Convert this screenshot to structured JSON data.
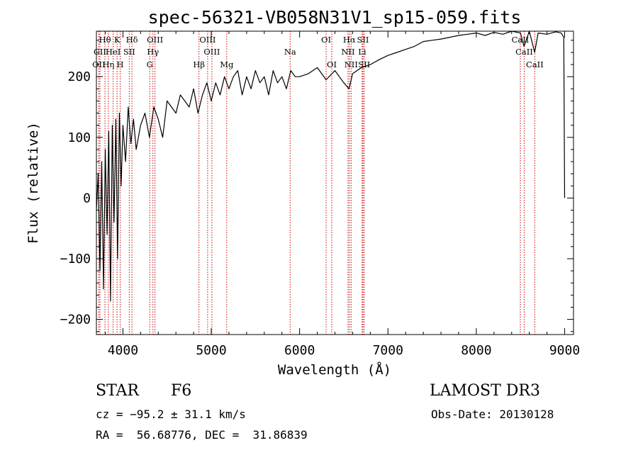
{
  "chart_data": {
    "type": "line",
    "title": "spec-56321-VB058N31V1_sp15-059.fits",
    "xlabel": "Wavelength (Å)",
    "ylabel": "Flux (relative)",
    "xlim": [
      3700,
      9100
    ],
    "ylim": [
      -225,
      275
    ],
    "xticks": [
      4000,
      5000,
      6000,
      7000,
      8000,
      9000
    ],
    "xtick_labels": [
      "4000",
      "5000",
      "6000",
      "7000",
      "8000",
      "9000"
    ],
    "yticks": [
      -200,
      -100,
      0,
      100,
      200
    ],
    "ytick_labels": [
      "−200",
      "−100",
      "0",
      "100",
      "200"
    ],
    "grid": false,
    "series": [
      {
        "name": "flux",
        "x": [
          3700,
          3720,
          3740,
          3760,
          3780,
          3800,
          3820,
          3840,
          3860,
          3880,
          3900,
          3920,
          3940,
          3960,
          3980,
          4000,
          4030,
          4060,
          4090,
          4120,
          4150,
          4200,
          4250,
          4300,
          4350,
          4400,
          4450,
          4500,
          4550,
          4600,
          4650,
          4700,
          4750,
          4800,
          4850,
          4900,
          4950,
          5000,
          5050,
          5100,
          5150,
          5200,
          5250,
          5300,
          5350,
          5400,
          5450,
          5500,
          5550,
          5600,
          5650,
          5700,
          5750,
          5800,
          5850,
          5900,
          5950,
          6000,
          6100,
          6200,
          6300,
          6400,
          6500,
          6560,
          6600,
          6700,
          6800,
          6900,
          7000,
          7100,
          7200,
          7300,
          7400,
          7500,
          7600,
          7700,
          7800,
          7900,
          8000,
          8100,
          8200,
          8300,
          8400,
          8500,
          8540,
          8600,
          8660,
          8700,
          8800,
          8900,
          8960,
          8990,
          9000
        ],
        "values": [
          -20,
          40,
          -120,
          60,
          -150,
          80,
          -60,
          110,
          -170,
          120,
          -40,
          130,
          -100,
          140,
          20,
          120,
          60,
          150,
          90,
          130,
          80,
          120,
          140,
          100,
          150,
          130,
          100,
          160,
          150,
          140,
          170,
          160,
          150,
          180,
          140,
          170,
          190,
          160,
          190,
          170,
          200,
          180,
          200,
          210,
          170,
          200,
          180,
          210,
          190,
          200,
          170,
          210,
          190,
          200,
          180,
          210,
          200,
          200,
          205,
          215,
          195,
          210,
          190,
          180,
          205,
          215,
          220,
          228,
          235,
          240,
          245,
          250,
          258,
          260,
          262,
          265,
          268,
          270,
          272,
          268,
          273,
          270,
          275,
          272,
          250,
          275,
          240,
          272,
          270,
          274,
          272,
          265,
          0
        ]
      }
    ],
    "spectral_lines": [
      {
        "label": "Hθ",
        "wavelength": 3797,
        "row": 1
      },
      {
        "label": "OII",
        "wavelength": 3727,
        "row": 3
      },
      {
        "label": "Hη",
        "wavelength": 3835,
        "row": 3
      },
      {
        "label": "CII",
        "wavelength": 3740,
        "row": 2
      },
      {
        "label": "HeI",
        "wavelength": 3889,
        "row": 2
      },
      {
        "label": "K",
        "wavelength": 3934,
        "row": 1
      },
      {
        "label": "H",
        "wavelength": 3969,
        "row": 3
      },
      {
        "label": "SII",
        "wavelength": 4072,
        "row": 2
      },
      {
        "label": "Hδ",
        "wavelength": 4102,
        "row": 1
      },
      {
        "label": "OIII",
        "wavelength": 4363,
        "row": 1
      },
      {
        "label": "Hγ",
        "wavelength": 4340,
        "row": 2
      },
      {
        "label": "G",
        "wavelength": 4304,
        "row": 3
      },
      {
        "label": "Hβ",
        "wavelength": 4861,
        "row": 3
      },
      {
        "label": "OIII",
        "wavelength": 4959,
        "row": 1
      },
      {
        "label": "OIII",
        "wavelength": 5007,
        "row": 2
      },
      {
        "label": "Mg",
        "wavelength": 5175,
        "row": 3
      },
      {
        "label": "Na",
        "wavelength": 5893,
        "row": 2
      },
      {
        "label": "OI",
        "wavelength": 6300,
        "row": 1
      },
      {
        "label": "OI",
        "wavelength": 6364,
        "row": 3
      },
      {
        "label": "Hα",
        "wavelength": 6563,
        "row": 1
      },
      {
        "label": "NII",
        "wavelength": 6548,
        "row": 2
      },
      {
        "label": "NII",
        "wavelength": 6583,
        "row": 3
      },
      {
        "label": "SII",
        "wavelength": 6717,
        "row": 1
      },
      {
        "label": "Li",
        "wavelength": 6708,
        "row": 2
      },
      {
        "label": "SII",
        "wavelength": 6731,
        "row": 3
      },
      {
        "label": "CaII",
        "wavelength": 8498,
        "row": 1
      },
      {
        "label": "CaII",
        "wavelength": 8542,
        "row": 2
      },
      {
        "label": "CaII",
        "wavelength": 8662,
        "row": 3
      }
    ]
  },
  "info": {
    "class_label": "STAR",
    "subclass": "F6",
    "survey": "LAMOST DR3",
    "velocity": "cz = −95.2 ± 31.1 km/s",
    "obs_date": "Obs-Date: 20130128",
    "coords": "RA =  56.68776, DEC =  31.86839"
  },
  "colors": {
    "line_marker": "#cc0000",
    "spectrum": "#000000"
  }
}
